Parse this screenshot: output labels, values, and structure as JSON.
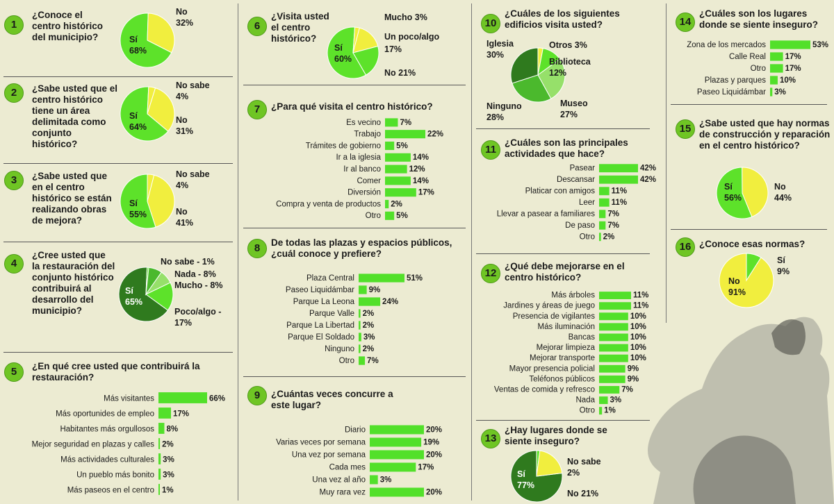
{
  "colors": {
    "bright": "#5de22a",
    "yellow": "#f1ee3e",
    "dark": "#2f7a1e",
    "mid": "#4bb92d",
    "light": "#96e06a",
    "bar": "#52e02a"
  },
  "q1": {
    "num": "1",
    "text": "¿Conoce el centro histórico del municipio?",
    "chart_data": {
      "type": "pie",
      "title": "¿Conoce el centro histórico del municipio?",
      "labels": [
        "Sí",
        "No"
      ],
      "values": [
        68,
        32
      ]
    },
    "si": "Sí",
    "si_pct": "68%",
    "no": "No",
    "no_pct": "32%"
  },
  "q2": {
    "num": "2",
    "text": "¿Sabe usted que el centro histórico tiene un área delimitada como conjunto histórico?",
    "chart_data": {
      "type": "pie",
      "title": "¿Sabe usted que el centro histórico tiene un área delimitada como conjunto histórico?",
      "labels": [
        "Sí",
        "No sabe",
        "No"
      ],
      "values": [
        64,
        4,
        31
      ]
    },
    "si": "Sí",
    "si_pct": "64%",
    "nosabe": "No sabe",
    "nosabe_pct": "4%",
    "no": "No",
    "no_pct": "31%"
  },
  "q3": {
    "num": "3",
    "text": "¿Sabe usted que en el centro histórico se están realizando obras de mejora?",
    "chart_data": {
      "type": "pie",
      "title": "¿Sabe usted que en el centro histórico se están realizando obras de mejora?",
      "labels": [
        "Sí",
        "No sabe",
        "No"
      ],
      "values": [
        55,
        4,
        41
      ]
    },
    "si": "Sí",
    "si_pct": "55%",
    "nosabe": "No sabe",
    "nosabe_pct": "4%",
    "no": "No",
    "no_pct": "41%"
  },
  "q4": {
    "num": "4",
    "text": "¿Cree usted que la restauración del conjunto histórico contribuirá al desarrollo del municipio?",
    "chart_data": {
      "type": "pie",
      "title": "¿Cree usted que la restauración del conjunto histórico contribuirá al desarrollo del municipio?",
      "labels": [
        "Sí",
        "No sabe",
        "Nada",
        "Mucho",
        "Poco/algo"
      ],
      "values": [
        65,
        1,
        8,
        8,
        17
      ]
    },
    "si": "Sí",
    "si_pct": "65%",
    "l1": "No sabe - 1%",
    "l2": "Nada - 8%",
    "l3": "Mucho - 8%",
    "l4a": "Poco/algo -",
    "l4b": "17%"
  },
  "q5": {
    "num": "5",
    "text": "¿En qué cree usted que contribuirá la restauración?",
    "chart_data": {
      "type": "bar",
      "title": "¿En qué cree usted que contribuirá la restauración?",
      "categories": [
        "Más visitantes",
        "Más oportunides de empleo",
        "Habitantes más orgullosos",
        "Mejor seguridad en plazas y calles",
        "Más actividades culturales",
        "Un pueblo más bonito",
        "Más paseos en el centro"
      ],
      "values": [
        66,
        17,
        8,
        2,
        3,
        3,
        1
      ],
      "labels": [
        "66%",
        "17%",
        "8%",
        "2%",
        "3%",
        "3%",
        "1%"
      ]
    }
  },
  "q6": {
    "num": "6",
    "text": "¿Visita usted el centro histórico?",
    "chart_data": {
      "type": "pie",
      "title": "¿Visita usted el centro histórico?",
      "labels": [
        "Sí",
        "Mucho",
        "Un poco/algo",
        "No"
      ],
      "values": [
        60,
        3,
        17,
        21
      ]
    },
    "si": "Sí",
    "si_pct": "60%",
    "mucho": "Mucho 3%",
    "poco": "Un poco/algo",
    "poco_pct": "17%",
    "no": "No 21%"
  },
  "q7": {
    "num": "7",
    "text": "¿Para qué visita el centro histórico?",
    "chart_data": {
      "type": "bar",
      "title": "¿Para qué visita el centro histórico?",
      "categories": [
        "Es vecino",
        "Trabajo",
        "Trámites de gobierno",
        "Ir a la iglesia",
        "Ir al banco",
        "Comer",
        "Diversión",
        "Compra y venta de productos",
        "Otro"
      ],
      "values": [
        7,
        22,
        5,
        14,
        12,
        14,
        17,
        2,
        5
      ],
      "labels": [
        "7%",
        "22%",
        "5%",
        "14%",
        "12%",
        "14%",
        "17%",
        "2%",
        "5%"
      ]
    }
  },
  "q8": {
    "num": "8",
    "text": "De todas las plazas y espacios públicos, ¿cuál conoce y prefiere?",
    "chart_data": {
      "type": "bar",
      "title": "De todas las plazas y espacios públicos, ¿cuál conoce y prefiere?",
      "categories": [
        "Plaza Central",
        "Paseo Liquidámbar",
        "Parque La Leona",
        "Parque Valle",
        "Parque La Libertad",
        "Parque El Soldado",
        "Ninguno",
        "Otro"
      ],
      "values": [
        51,
        9,
        24,
        2,
        2,
        3,
        2,
        7
      ],
      "labels": [
        "51%",
        "9%",
        "24%",
        "2%",
        "2%",
        "3%",
        "2%",
        "7%"
      ]
    }
  },
  "q9": {
    "num": "9",
    "text": "¿Cuántas veces concurre a este lugar?",
    "chart_data": {
      "type": "bar",
      "title": "¿Cuántas veces concurre a este lugar?",
      "categories": [
        "Diario",
        "Varias veces por semana",
        "Una vez por semana",
        "Cada mes",
        "Una vez al año",
        "Muy rara vez"
      ],
      "values": [
        20,
        19,
        20,
        17,
        3,
        20
      ],
      "labels": [
        "20%",
        "19%",
        "20%",
        "17%",
        "3%",
        "20%"
      ]
    }
  },
  "q10": {
    "num": "10",
    "text": "¿Cuáles de los siguientes edificios visita usted?",
    "chart_data": {
      "type": "pie",
      "title": "¿Cuáles de los siguientes edificios visita usted?",
      "labels": [
        "Iglesia",
        "Otros",
        "Biblioteca",
        "Museo",
        "Ninguno"
      ],
      "values": [
        30,
        3,
        12,
        27,
        28
      ]
    },
    "iglesia": "Iglesia",
    "iglesia_pct": "30%",
    "otros": "Otros 3%",
    "biblioteca": "Biblioteca",
    "biblioteca_pct": "12%",
    "museo": "Museo",
    "museo_pct": "27%",
    "ninguno": "Ninguno",
    "ninguno_pct": "28%"
  },
  "q11": {
    "num": "11",
    "text": "¿Cuáles son las principales actividades que hace?",
    "chart_data": {
      "type": "bar",
      "title": "¿Cuáles son las principales actividades que hace?",
      "categories": [
        "Pasear",
        "Descansar",
        "Platicar con amigos",
        "Leer",
        "Llevar a pasear a familiares",
        "De paso",
        "Otro"
      ],
      "values": [
        42,
        42,
        11,
        11,
        7,
        7,
        2
      ],
      "labels": [
        "42%",
        "42%",
        "11%",
        "11%",
        "7%",
        "7%",
        "2%"
      ]
    }
  },
  "q12": {
    "num": "12",
    "text": "¿Qué debe mejorarse en el centro histórico?",
    "chart_data": {
      "type": "bar",
      "title": "¿Qué debe mejorarse en el centro histórico?",
      "categories": [
        "Más árboles",
        "Jardines y áreas de juego",
        "Presencia de vigilantes",
        "Más iluminación",
        "Bancas",
        "Mejorar limpieza",
        "Mejorar transporte",
        "Mayor presencia policial",
        "Teléfonos públicos",
        "Ventas de comida y refresco",
        "Nada",
        "Otro"
      ],
      "values": [
        11,
        11,
        10,
        10,
        10,
        10,
        10,
        9,
        9,
        7,
        3,
        1
      ],
      "labels": [
        "11%",
        "11%",
        "10%",
        "10%",
        "10%",
        "10%",
        "10%",
        "9%",
        "9%",
        "7%",
        "3%",
        "1%"
      ]
    }
  },
  "q13": {
    "num": "13",
    "text": "¿Hay lugares donde se siente inseguro?",
    "chart_data": {
      "type": "pie",
      "title": "¿Hay lugares donde se siente inseguro?",
      "labels": [
        "Sí",
        "No sabe",
        "No"
      ],
      "values": [
        77,
        2,
        21
      ]
    },
    "si": "Sí",
    "si_pct": "77%",
    "nosabe": "No sabe",
    "nosabe_pct": "2%",
    "no": "No 21%"
  },
  "q14": {
    "num": "14",
    "text": "¿Cuáles son los lugares donde se siente inseguro?",
    "chart_data": {
      "type": "bar",
      "title": "¿Cuáles son los lugares donde se siente inseguro?",
      "categories": [
        "Zona de los mercados",
        "Calle Real",
        "Otro",
        "Plazas y parques",
        "Paseo Liquidámbar"
      ],
      "values": [
        53,
        17,
        17,
        10,
        3
      ],
      "labels": [
        "53%",
        "17%",
        "17%",
        "10%",
        "3%"
      ]
    }
  },
  "q15": {
    "num": "15",
    "text": "¿Sabe usted que hay normas de construcción y reparación en el centro histórico?",
    "chart_data": {
      "type": "pie",
      "title": "¿Sabe usted que hay normas de construcción y reparación en el centro histórico?",
      "labels": [
        "Sí",
        "No"
      ],
      "values": [
        56,
        44
      ]
    },
    "si": "Sí",
    "si_pct": "56%",
    "no": "No",
    "no_pct": "44%"
  },
  "q16": {
    "num": "16",
    "text": "¿Conoce esas normas?",
    "chart_data": {
      "type": "pie",
      "title": "¿Conoce esas normas?",
      "labels": [
        "Sí",
        "No"
      ],
      "values": [
        9,
        91
      ]
    },
    "si": "Sí",
    "si_pct": "9%",
    "no": "No",
    "no_pct": "91%"
  }
}
